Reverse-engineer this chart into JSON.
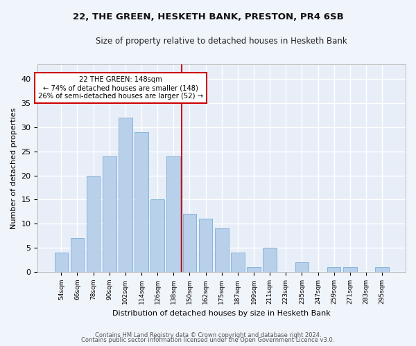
{
  "title1": "22, THE GREEN, HESKETH BANK, PRESTON, PR4 6SB",
  "title2": "Size of property relative to detached houses in Hesketh Bank",
  "xlabel": "Distribution of detached houses by size in Hesketh Bank",
  "ylabel": "Number of detached properties",
  "categories": [
    "54sqm",
    "66sqm",
    "78sqm",
    "90sqm",
    "102sqm",
    "114sqm",
    "126sqm",
    "138sqm",
    "150sqm",
    "162sqm",
    "175sqm",
    "187sqm",
    "199sqm",
    "211sqm",
    "223sqm",
    "235sqm",
    "247sqm",
    "259sqm",
    "271sqm",
    "283sqm",
    "295sqm"
  ],
  "values": [
    4,
    7,
    20,
    24,
    32,
    29,
    15,
    24,
    12,
    11,
    9,
    4,
    1,
    5,
    0,
    2,
    0,
    1,
    1,
    0,
    1
  ],
  "bar_color": "#b8d0ea",
  "bar_edge_color": "#7aaed6",
  "vline_color": "#cc0000",
  "annotation_box_edge": "#cc0000",
  "annotation_line1": "22 THE GREEN: 148sqm",
  "annotation_line2": "← 74% of detached houses are smaller (148)",
  "annotation_line3": "26% of semi-detached houses are larger (52) →",
  "ylim": [
    0,
    43
  ],
  "yticks": [
    0,
    5,
    10,
    15,
    20,
    25,
    30,
    35,
    40
  ],
  "background_color": "#e8eef8",
  "grid_color": "#ffffff",
  "fig_background": "#f0f4fb",
  "footer1": "Contains HM Land Registry data © Crown copyright and database right 2024.",
  "footer2": "Contains public sector information licensed under the Open Government Licence v3.0."
}
